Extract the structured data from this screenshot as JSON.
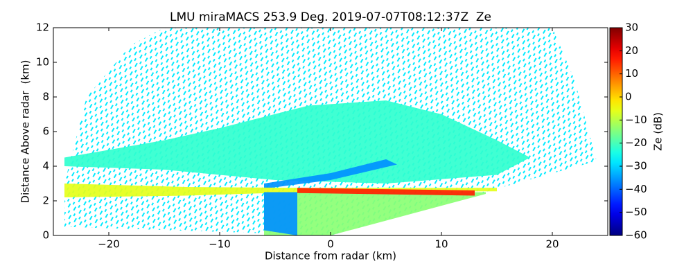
{
  "chart_data": {
    "type": "radar-rhi",
    "title": "LMU miraMACS 253.9 Deg. 2019-07-07T08:12:37Z  Ze",
    "xlabel": "Distance from radar (km)",
    "ylabel": "Distance Above radar  (km)",
    "colorbar_label": "Ze (dB)",
    "colormap": "jet",
    "xlim": [
      -25,
      25
    ],
    "ylim": [
      0,
      12
    ],
    "xticks": [
      {
        "value": -20,
        "label": "−20"
      },
      {
        "value": -10,
        "label": "−10"
      },
      0,
      10,
      20
    ],
    "yticks": [
      0,
      2,
      4,
      6,
      8,
      10,
      12
    ],
    "clim": [
      -60,
      30
    ],
    "cticks": [
      {
        "value": -60,
        "label": "−60"
      },
      {
        "value": -50,
        "label": "−50"
      },
      {
        "value": -40,
        "label": "−40"
      },
      {
        "value": -30,
        "label": "−30"
      },
      {
        "value": -20,
        "label": "−20"
      },
      {
        "value": -10,
        "label": "−10"
      },
      0,
      10,
      20,
      30
    ],
    "regions": [
      {
        "x": [
          -24,
          -24,
          -22,
          -18,
          -15,
          20,
          22,
          24,
          15,
          0
        ],
        "y": [
          0.5,
          3,
          8,
          11,
          12,
          12,
          9,
          4.3,
          2.7,
          0
        ],
        "ze": -28,
        "sparse": true
      },
      {
        "x": [
          -24,
          -15,
          -10,
          -2,
          5,
          10,
          15,
          18,
          15,
          5,
          -5,
          -15,
          -24
        ],
        "y": [
          4.5,
          5.5,
          6.2,
          7.5,
          7.8,
          7,
          5.5,
          4.5,
          3.5,
          3,
          3.2,
          3.8,
          4
        ],
        "ze": -22
      },
      {
        "x": [
          -6,
          0,
          5,
          6,
          0,
          -6
        ],
        "y": [
          3,
          3.6,
          4.4,
          4.1,
          3.2,
          2.7
        ],
        "ze": -36
      },
      {
        "x": [
          -24,
          -13,
          -3,
          15,
          15,
          -3,
          -13,
          -24
        ],
        "y": [
          3,
          2.8,
          2.75,
          2.75,
          2.55,
          2.5,
          2.3,
          2.2
        ],
        "ze": -6
      },
      {
        "x": [
          -6,
          -6,
          0,
          14,
          14,
          -6
        ],
        "y": [
          2.5,
          0,
          0,
          2.4,
          2.5,
          2.5
        ],
        "ze": -14
      },
      {
        "x": [
          -6,
          -6,
          -3,
          -3
        ],
        "y": [
          2.5,
          0.3,
          0,
          2.5
        ],
        "ze": -36
      },
      {
        "x": [
          -3,
          13,
          13,
          -3
        ],
        "y": [
          2.75,
          2.6,
          2.3,
          2.45
        ],
        "ze": 16
      }
    ]
  }
}
